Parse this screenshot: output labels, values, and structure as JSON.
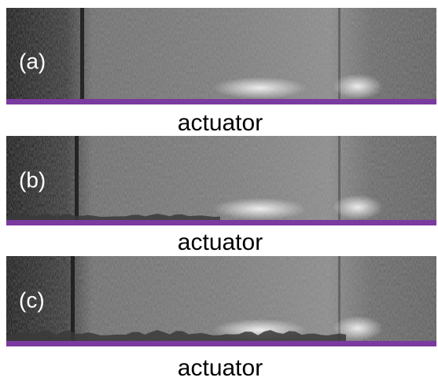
{
  "panels": [
    {
      "label": "(a)",
      "caption": "actuator"
    },
    {
      "label": "(b)",
      "caption": "actuator"
    },
    {
      "label": "(c)",
      "caption": "actuator"
    }
  ]
}
